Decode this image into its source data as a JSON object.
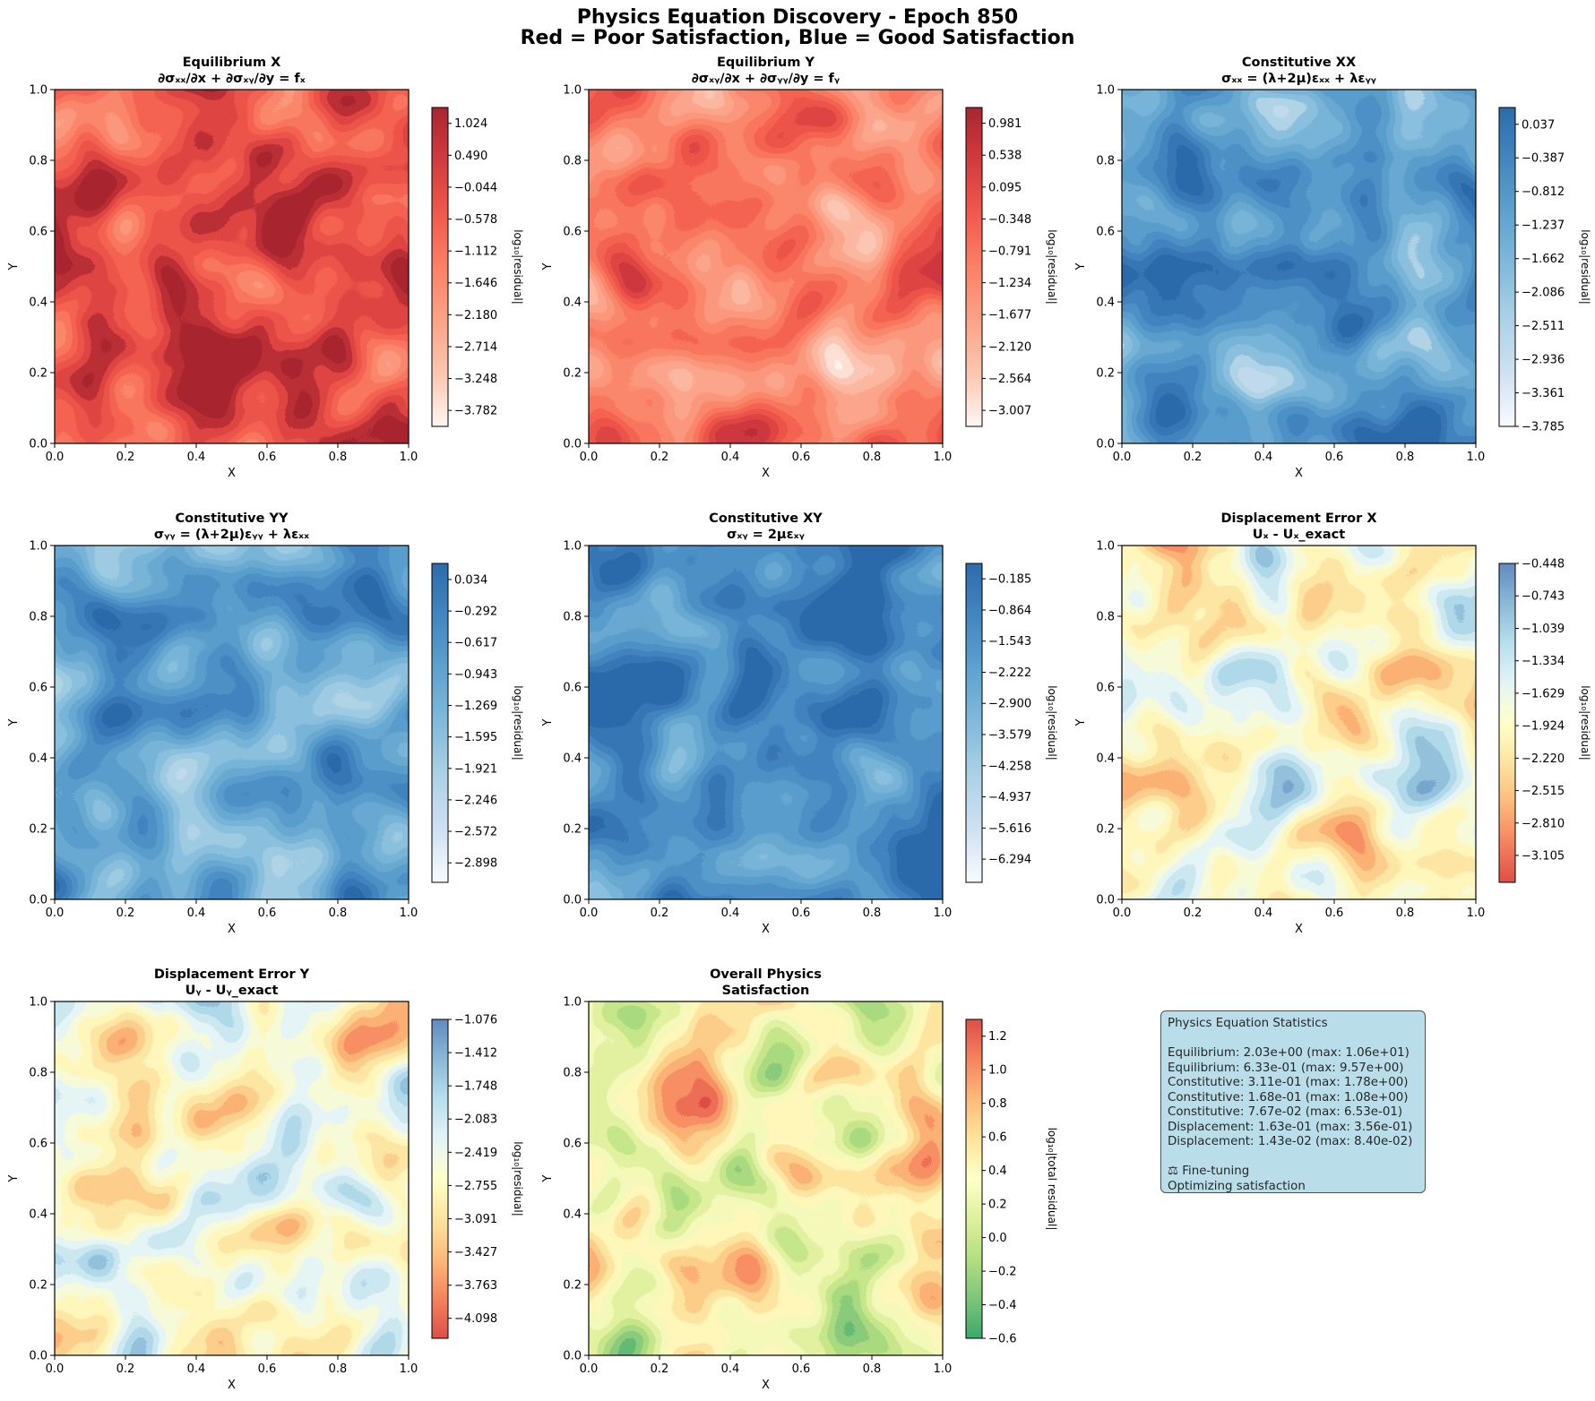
{
  "figure": {
    "title_line1": "Physics Equation Discovery - Epoch 850",
    "title_line2": "Red = Poor Satisfaction, Blue = Good Satisfaction"
  },
  "chart_data": [
    {
      "type": "heatmap",
      "title": "Equilibrium X",
      "subtitle": "∂σₓₓ/∂x + ∂σₓᵧ/∂y = fₓ",
      "xlabel": "X",
      "ylabel": "Y",
      "xlim": [
        0,
        1
      ],
      "ylim": [
        0,
        1
      ],
      "x_ticks": [
        "0.0",
        "0.2",
        "0.4",
        "0.6",
        "0.8",
        "1.0"
      ],
      "y_ticks": [
        "0.0",
        "0.2",
        "0.4",
        "0.6",
        "0.8",
        "1.0"
      ],
      "colormap": "Reds",
      "colorbar_label": "log₁₀|residual|",
      "colorbar_range": [
        -4.05,
        1.29
      ],
      "colorbar_ticks": [
        "1.024",
        "0.490",
        "−0.044",
        "−0.578",
        "−1.112",
        "−1.646",
        "−2.180",
        "−2.714",
        "−3.248",
        "−3.782"
      ],
      "field_seed": 11,
      "field_mean": 0.26
    },
    {
      "type": "heatmap",
      "title": "Equilibrium Y",
      "subtitle": "∂σₓᵧ/∂x + ∂σᵧᵧ/∂y = fᵧ",
      "xlabel": "X",
      "ylabel": "Y",
      "xlim": [
        0,
        1
      ],
      "ylim": [
        0,
        1
      ],
      "x_ticks": [
        "0.0",
        "0.2",
        "0.4",
        "0.6",
        "0.8",
        "1.0"
      ],
      "y_ticks": [
        "0.0",
        "0.2",
        "0.4",
        "0.6",
        "0.8",
        "1.0"
      ],
      "colormap": "Reds",
      "colorbar_label": "log₁₀|residual|",
      "colorbar_range": [
        -3.23,
        1.2
      ],
      "colorbar_ticks": [
        "0.981",
        "0.538",
        "0.095",
        "−0.348",
        "−0.791",
        "−1.234",
        "−1.677",
        "−2.120",
        "−2.564",
        "−3.007"
      ],
      "field_seed": 23,
      "field_mean": 0.5
    },
    {
      "type": "heatmap",
      "title": "Constitutive XX",
      "subtitle": "σₓₓ = (λ+2μ)εₓₓ + λεᵧᵧ",
      "xlabel": "X",
      "ylabel": "Y",
      "xlim": [
        0,
        1
      ],
      "ylim": [
        0,
        1
      ],
      "x_ticks": [
        "0.0",
        "0.2",
        "0.4",
        "0.6",
        "0.8",
        "1.0"
      ],
      "y_ticks": [
        "0.0",
        "0.2",
        "0.4",
        "0.6",
        "0.8",
        "1.0"
      ],
      "colormap": "Blues",
      "colorbar_label": "log₁₀|residual|",
      "colorbar_range": [
        -3.785,
        0.25
      ],
      "colorbar_ticks": [
        "0.037",
        "−0.387",
        "−0.812",
        "−1.237",
        "−1.662",
        "−2.086",
        "−2.511",
        "−2.936",
        "−3.361",
        "−3.785"
      ],
      "field_seed": 37,
      "field_mean": 0.3
    },
    {
      "type": "heatmap",
      "title": "Constitutive YY",
      "subtitle": "σᵧᵧ = (λ+2μ)εᵧᵧ + λεₓₓ",
      "xlabel": "X",
      "ylabel": "Y",
      "xlim": [
        0,
        1
      ],
      "ylim": [
        0,
        1
      ],
      "x_ticks": [
        "0.0",
        "0.2",
        "0.4",
        "0.6",
        "0.8",
        "1.0"
      ],
      "y_ticks": [
        "0.0",
        "0.2",
        "0.4",
        "0.6",
        "0.8",
        "1.0"
      ],
      "colormap": "Blues",
      "colorbar_label": "log₁₀|residual|",
      "colorbar_range": [
        -3.1,
        0.2
      ],
      "colorbar_ticks": [
        "0.034",
        "−0.292",
        "−0.617",
        "−0.943",
        "−1.269",
        "−1.595",
        "−1.921",
        "−2.246",
        "−2.572",
        "−2.898"
      ],
      "field_seed": 53,
      "field_mean": 0.36
    },
    {
      "type": "heatmap",
      "title": "Constitutive XY",
      "subtitle": "σₓᵧ = 2μεₓᵧ",
      "xlabel": "X",
      "ylabel": "Y",
      "xlim": [
        0,
        1
      ],
      "ylim": [
        0,
        1
      ],
      "x_ticks": [
        "0.0",
        "0.2",
        "0.4",
        "0.6",
        "0.8",
        "1.0"
      ],
      "y_ticks": [
        "0.0",
        "0.2",
        "0.4",
        "0.6",
        "0.8",
        "1.0"
      ],
      "colormap": "Blues",
      "colorbar_label": "log₁₀|residual|",
      "colorbar_range": [
        -6.8,
        0.15
      ],
      "colorbar_ticks": [
        "−0.185",
        "−0.864",
        "−1.543",
        "−2.222",
        "−2.900",
        "−3.579",
        "−4.258",
        "−4.937",
        "−5.616",
        "−6.294"
      ],
      "field_seed": 71,
      "field_mean": 0.2
    },
    {
      "type": "heatmap",
      "title": "Displacement Error X",
      "subtitle": "Uₓ - Uₓ_exact",
      "xlabel": "X",
      "ylabel": "Y",
      "xlim": [
        0,
        1
      ],
      "ylim": [
        0,
        1
      ],
      "x_ticks": [
        "0.0",
        "0.2",
        "0.4",
        "0.6",
        "0.8",
        "1.0"
      ],
      "y_ticks": [
        "0.0",
        "0.2",
        "0.4",
        "0.6",
        "0.8",
        "1.0"
      ],
      "colormap": "RdYlBu",
      "colorbar_label": "log₁₀|residual|",
      "colorbar_range": [
        -3.35,
        -0.448
      ],
      "colorbar_ticks": [
        "−0.448",
        "−0.743",
        "−1.039",
        "−1.334",
        "−1.629",
        "−1.924",
        "−2.220",
        "−2.515",
        "−2.810",
        "−3.105"
      ],
      "field_seed": 89,
      "field_mean": 0.5
    },
    {
      "type": "heatmap",
      "title": "Displacement Error Y",
      "subtitle": "Uᵧ - Uᵧ_exact",
      "xlabel": "X",
      "ylabel": "Y",
      "xlim": [
        0,
        1
      ],
      "ylim": [
        0,
        1
      ],
      "x_ticks": [
        "0.0",
        "0.2",
        "0.4",
        "0.6",
        "0.8",
        "1.0"
      ],
      "y_ticks": [
        "0.0",
        "0.2",
        "0.4",
        "0.6",
        "0.8",
        "1.0"
      ],
      "colormap": "RdYlBu",
      "colorbar_label": "log₁₀|residual|",
      "colorbar_range": [
        -4.3,
        -1.076
      ],
      "colorbar_ticks": [
        "−1.076",
        "−1.412",
        "−1.748",
        "−2.083",
        "−2.419",
        "−2.755",
        "−3.091",
        "−3.427",
        "−3.763",
        "−4.098"
      ],
      "field_seed": 97,
      "field_mean": 0.5
    },
    {
      "type": "heatmap",
      "title": "Overall Physics",
      "subtitle": "Satisfaction",
      "xlabel": "X",
      "ylabel": "Y",
      "xlim": [
        0,
        1
      ],
      "ylim": [
        0,
        1
      ],
      "x_ticks": [
        "0.0",
        "0.2",
        "0.4",
        "0.6",
        "0.8",
        "1.0"
      ],
      "y_ticks": [
        "0.0",
        "0.2",
        "0.4",
        "0.6",
        "0.8",
        "1.0"
      ],
      "colormap": "RdYlGn_r",
      "colorbar_label": "log₁₀|total residual|",
      "colorbar_range": [
        -0.6,
        1.3
      ],
      "colorbar_ticks": [
        "1.2",
        "1.0",
        "0.8",
        "0.6",
        "0.4",
        "0.2",
        "0.0",
        "−0.2",
        "−0.4",
        "−0.6"
      ],
      "field_seed": 113,
      "field_mean": 0.5
    }
  ],
  "stats": {
    "heading": "Physics Equation Statistics",
    "lines": [
      "Equilibrium: 2.03e+00 (max: 1.06e+01)",
      "Equilibrium: 6.33e-01 (max: 9.57e+00)",
      "Constitutive: 3.11e-01 (max: 1.78e+00)",
      "Constitutive: 1.68e-01 (max: 1.08e+00)",
      "Constitutive: 7.67e-02 (max: 6.53e-01)",
      "Displacement: 1.63e-01 (max: 3.56e-01)",
      "Displacement: 1.43e-02 (max: 8.40e-02)"
    ],
    "status_line1": "⚖ Fine-tuning",
    "status_line2": "Optimizing satisfaction"
  }
}
